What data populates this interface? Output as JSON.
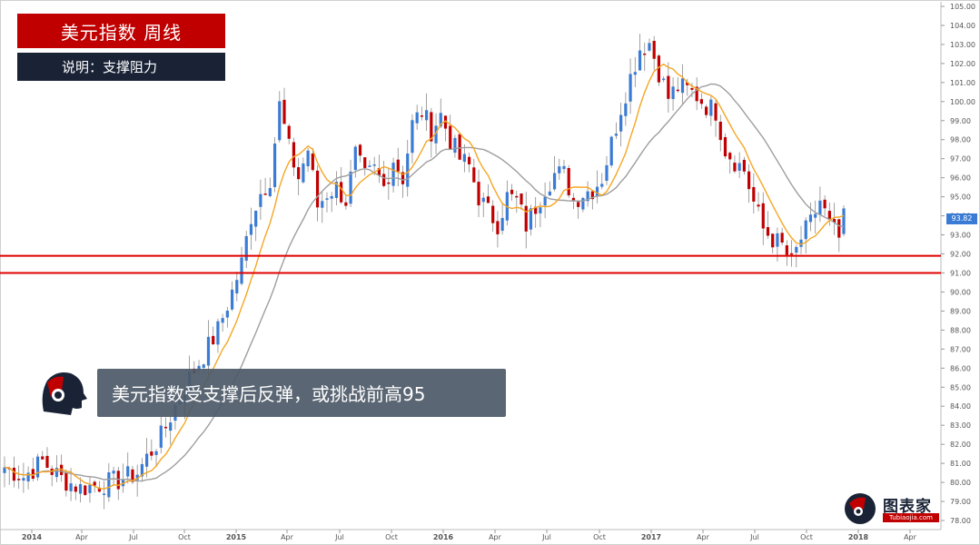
{
  "title": "美元指数  周线",
  "subtitle": "说明：支撑阻力",
  "callout": "美元指数受支撑后反弹，或挑战前高95",
  "logo": {
    "name": "图表家",
    "sub": "Tubiaojia.com"
  },
  "colors": {
    "up": "#3a7bd5",
    "down": "#c00000",
    "ma_fast": "#f5a623",
    "ma_slow": "#9e9e9e",
    "level": "#e00000"
  },
  "chart_data": {
    "type": "candlestick",
    "title": "",
    "xlabel": "",
    "ylabel": "",
    "ylim": [
      77.5,
      105.3
    ],
    "y_ticks": [
      "78.00",
      "79.00",
      "80.00",
      "81.00",
      "82.00",
      "83.00",
      "84.00",
      "85.00",
      "86.00",
      "87.00",
      "88.00",
      "89.00",
      "90.00",
      "91.00",
      "92.00",
      "93.00",
      "94.00",
      "95.00",
      "96.00",
      "97.00",
      "98.00",
      "99.00",
      "100.00",
      "101.00",
      "102.00",
      "103.00",
      "104.00",
      "105.00"
    ],
    "x_ticks": [
      "2014",
      "Apr",
      "Jul",
      "Oct",
      "2015",
      "Apr",
      "Jul",
      "Oct",
      "2016",
      "Apr",
      "Jul",
      "Oct",
      "2017",
      "Apr",
      "Jul",
      "Oct",
      "2018",
      "Apr"
    ],
    "last_price": "93.82",
    "horizontal_levels": [
      91.9,
      91.0
    ],
    "anchors": [
      [
        0,
        80.8
      ],
      [
        4,
        80.3
      ],
      [
        8,
        81.1
      ],
      [
        12,
        80.2
      ],
      [
        16,
        79.7
      ],
      [
        20,
        79.9
      ],
      [
        24,
        80.1
      ],
      [
        28,
        80.5
      ],
      [
        30,
        81.3
      ],
      [
        33,
        82.4
      ],
      [
        36,
        84.0
      ],
      [
        39,
        85.5
      ],
      [
        42,
        86.7
      ],
      [
        45,
        88.0
      ],
      [
        48,
        90.0
      ],
      [
        50,
        91.5
      ],
      [
        52,
        94.0
      ],
      [
        54,
        95.2
      ],
      [
        56,
        96.0
      ],
      [
        58,
        99.8
      ],
      [
        60,
        97.5
      ],
      [
        62,
        96.0
      ],
      [
        64,
        97.5
      ],
      [
        66,
        94.5
      ],
      [
        68,
        95.2
      ],
      [
        70,
        95.5
      ],
      [
        72,
        94.8
      ],
      [
        74,
        97.2
      ],
      [
        76,
        96.0
      ],
      [
        78,
        96.4
      ],
      [
        80,
        95.5
      ],
      [
        82,
        97.0
      ],
      [
        84,
        96.0
      ],
      [
        86,
        98.8
      ],
      [
        88,
        99.5
      ],
      [
        90,
        98.5
      ],
      [
        92,
        99.3
      ],
      [
        94,
        98.0
      ],
      [
        96,
        97.0
      ],
      [
        98,
        96.6
      ],
      [
        100,
        95.0
      ],
      [
        102,
        94.2
      ],
      [
        104,
        93.6
      ],
      [
        106,
        95.0
      ],
      [
        108,
        94.8
      ],
      [
        110,
        93.5
      ],
      [
        112,
        94.5
      ],
      [
        114,
        95.5
      ],
      [
        116,
        96.2
      ],
      [
        118,
        96.2
      ],
      [
        120,
        94.8
      ],
      [
        122,
        95.2
      ],
      [
        124,
        95.4
      ],
      [
        126,
        96.0
      ],
      [
        128,
        97.8
      ],
      [
        130,
        99.7
      ],
      [
        132,
        101.3
      ],
      [
        134,
        102.8
      ],
      [
        136,
        103.1
      ],
      [
        138,
        101.6
      ],
      [
        140,
        100.2
      ],
      [
        142,
        100.8
      ],
      [
        144,
        100.6
      ],
      [
        146,
        100.3
      ],
      [
        148,
        99.8
      ],
      [
        150,
        99.5
      ],
      [
        152,
        97.5
      ],
      [
        154,
        96.9
      ],
      [
        156,
        96.4
      ],
      [
        158,
        94.7
      ],
      [
        160,
        93.3
      ],
      [
        162,
        92.8
      ],
      [
        164,
        92.4
      ],
      [
        166,
        91.5
      ],
      [
        168,
        92.8
      ],
      [
        170,
        93.6
      ],
      [
        172,
        94.8
      ],
      [
        174,
        93.5
      ],
      [
        176,
        92.8
      ],
      [
        177,
        93.8
      ]
    ]
  }
}
